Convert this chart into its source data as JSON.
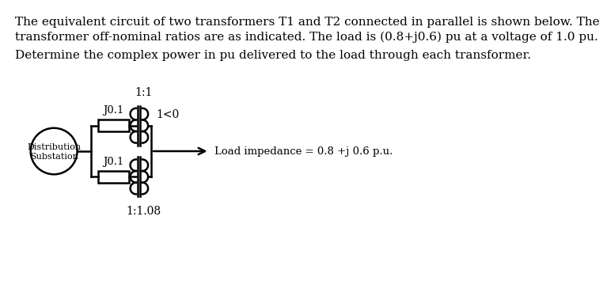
{
  "title_line1": "The equivalent circuit of two transformers T1 and T2 connected in parallel is shown below. The",
  "title_line2": "transformer off-nominal ratios are as indicated. The load is (0.8+j0.6) pu at a voltage of 1.0 pu.",
  "title_line3": "Determine the complex power in pu delivered to the load through each transformer.",
  "bg_color": "#ffffff",
  "text_color": "#000000",
  "label_j01_top": "J0.1",
  "label_j01_bot": "J0.1",
  "label_ratio_top": "1:1",
  "label_ratio_bot": "1:1.08",
  "label_voltage": "1<0",
  "label_circle": "Distribution\nSubstation",
  "label_load": "Load impedance = 0.8 +j 0.6 p.u.",
  "font_size_body": 11,
  "font_size_label": 10
}
